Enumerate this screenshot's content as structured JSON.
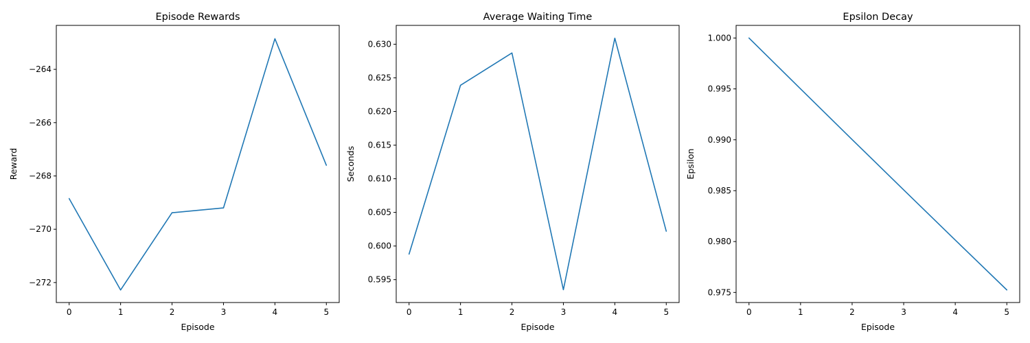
{
  "chart_data": [
    {
      "type": "line",
      "title": "Episode Rewards",
      "xlabel": "Episode",
      "ylabel": "Reward",
      "x": [
        0,
        1,
        2,
        3,
        4,
        5
      ],
      "series": [
        {
          "values": [
            -268.85,
            -272.28,
            -269.38,
            -269.2,
            -262.85,
            -267.6
          ],
          "color": "#1f77b4"
        }
      ],
      "xticks": [
        0,
        1,
        2,
        3,
        4,
        5
      ],
      "xtick_labels": [
        "0",
        "1",
        "2",
        "3",
        "4",
        "5"
      ],
      "yticks": [
        -272,
        -270,
        -268,
        -266,
        -264
      ],
      "ytick_labels": [
        "−272",
        "−270",
        "−268",
        "−266",
        "−264"
      ],
      "xlim": [
        -0.25,
        5.25
      ],
      "ylim": [
        -272.75,
        -262.35
      ],
      "grid": false,
      "legend": null
    },
    {
      "type": "line",
      "title": "Average Waiting Time",
      "xlabel": "Episode",
      "ylabel": "Seconds",
      "x": [
        0,
        1,
        2,
        3,
        4,
        5
      ],
      "series": [
        {
          "values": [
            0.5988,
            0.6239,
            0.6287,
            0.5935,
            0.6309,
            0.6022
          ],
          "color": "#1f77b4"
        }
      ],
      "xticks": [
        0,
        1,
        2,
        3,
        4,
        5
      ],
      "xtick_labels": [
        "0",
        "1",
        "2",
        "3",
        "4",
        "5"
      ],
      "yticks": [
        0.595,
        0.6,
        0.605,
        0.61,
        0.615,
        0.62,
        0.625,
        0.63
      ],
      "ytick_labels": [
        "0.595",
        "0.600",
        "0.605",
        "0.610",
        "0.615",
        "0.620",
        "0.625",
        "0.630"
      ],
      "xlim": [
        -0.25,
        5.25
      ],
      "ylim": [
        0.5916,
        0.6328
      ],
      "grid": false,
      "legend": null
    },
    {
      "type": "line",
      "title": "Epsilon Decay",
      "xlabel": "Episode",
      "ylabel": "Epsilon",
      "x": [
        0,
        1,
        2,
        3,
        4,
        5
      ],
      "series": [
        {
          "values": [
            1.0,
            0.995,
            0.990025,
            0.985075,
            0.98015,
            0.975249
          ],
          "color": "#1f77b4"
        }
      ],
      "xticks": [
        0,
        1,
        2,
        3,
        4,
        5
      ],
      "xtick_labels": [
        "0",
        "1",
        "2",
        "3",
        "4",
        "5"
      ],
      "yticks": [
        0.975,
        0.98,
        0.985,
        0.99,
        0.995,
        1.0
      ],
      "ytick_labels": [
        "0.975",
        "0.980",
        "0.985",
        "0.990",
        "0.995",
        "1.000"
      ],
      "xlim": [
        -0.25,
        5.25
      ],
      "ylim": [
        0.97401,
        1.00124
      ],
      "grid": false,
      "legend": null
    }
  ]
}
